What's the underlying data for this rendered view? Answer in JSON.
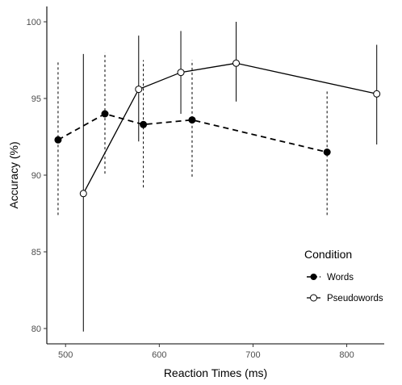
{
  "chart_data": {
    "type": "line",
    "title": "",
    "xlabel": "Reaction Times (ms)",
    "ylabel": "Accuracy (%)",
    "xlim": [
      480,
      840
    ],
    "ylim": [
      79,
      101
    ],
    "x_ticks": [
      500,
      600,
      700,
      800
    ],
    "y_ticks": [
      80,
      85,
      90,
      95,
      100
    ],
    "grid": false,
    "legend": {
      "title": "Condition",
      "position": "right"
    },
    "series": [
      {
        "name": "Words",
        "line_style": "dashed",
        "marker": "filled-circle",
        "points": [
          {
            "x": 492,
            "y": 92.3,
            "ymin": 87.4,
            "ymax": 97.4
          },
          {
            "x": 542,
            "y": 94.0,
            "ymin": 90.1,
            "ymax": 98.0
          },
          {
            "x": 583,
            "y": 93.3,
            "ymin": 89.2,
            "ymax": 97.5
          },
          {
            "x": 635,
            "y": 93.6,
            "ymin": 89.9,
            "ymax": 97.5
          },
          {
            "x": 779,
            "y": 91.5,
            "ymin": 87.4,
            "ymax": 95.6
          }
        ]
      },
      {
        "name": "Pseudowords",
        "line_style": "solid",
        "marker": "open-circle",
        "points": [
          {
            "x": 519,
            "y": 88.8,
            "ymin": 79.8,
            "ymax": 97.9
          },
          {
            "x": 578,
            "y": 95.6,
            "ymin": 92.2,
            "ymax": 99.1
          },
          {
            "x": 623,
            "y": 96.7,
            "ymin": 94.0,
            "ymax": 99.4
          },
          {
            "x": 682,
            "y": 97.3,
            "ymin": 94.8,
            "ymax": 100.0
          },
          {
            "x": 832,
            "y": 95.3,
            "ymin": 92.0,
            "ymax": 98.5
          }
        ]
      }
    ]
  }
}
